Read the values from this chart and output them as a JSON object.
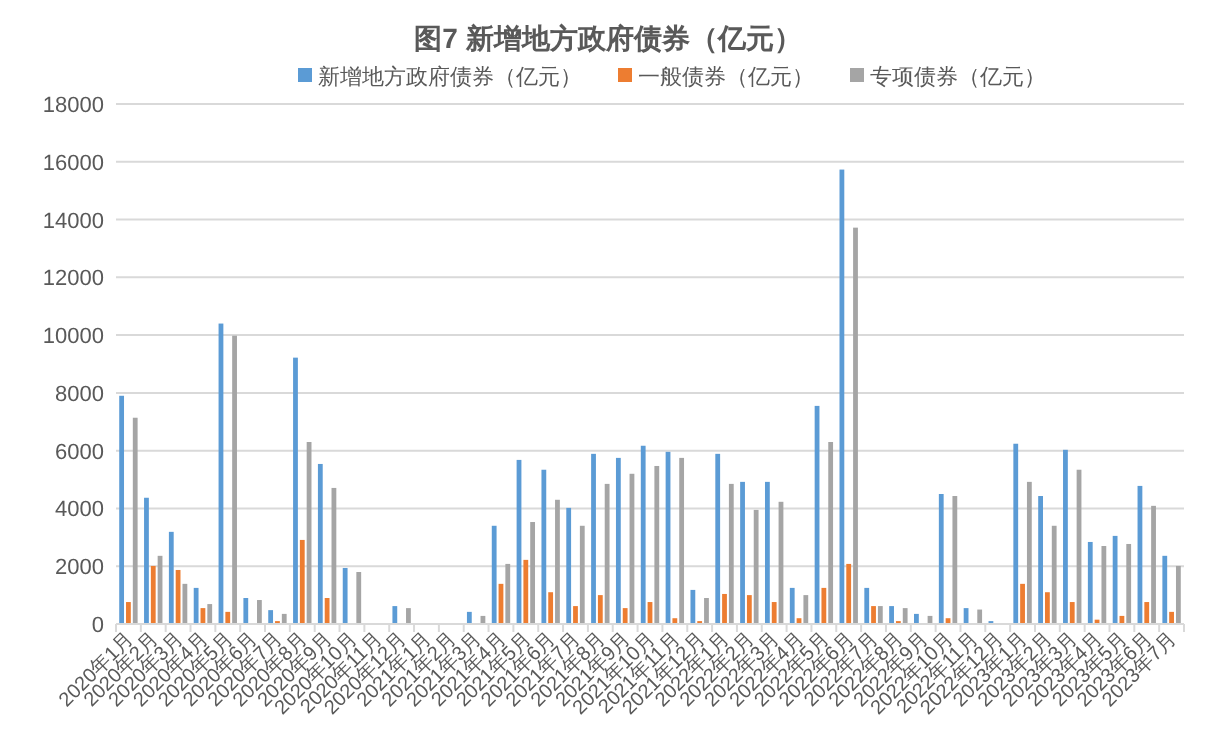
{
  "chart_data": {
    "type": "bar",
    "title": "图7 新增地方政府债券（亿元）",
    "categories": [
      "2020年1月",
      "2020年2月",
      "2020年3月",
      "2020年4月",
      "2020年5月",
      "2020年6月",
      "2020年7月",
      "2020年8月",
      "2020年9月",
      "2020年10月",
      "2020年11月",
      "2020年12月",
      "2021年1月",
      "2021年2月",
      "2021年3月",
      "2021年4月",
      "2021年5月",
      "2021年6月",
      "2021年7月",
      "2021年8月",
      "2021年9月",
      "2021年10月",
      "2021年11月",
      "2021年12月",
      "2022年1月",
      "2022年2月",
      "2022年3月",
      "2022年4月",
      "2022年5月",
      "2022年6月",
      "2022年7月",
      "2022年8月",
      "2022年9月",
      "2022年10月",
      "2022年11月",
      "2022年12月",
      "2023年1月",
      "2023年2月",
      "2023年3月",
      "2023年4月",
      "2023年5月",
      "2023年6月",
      "2023年7月"
    ],
    "series": [
      {
        "name": "新增地方政府债券（亿元）",
        "color": "#5b9bd5",
        "values": [
          7900,
          4370,
          3190,
          1250,
          10400,
          900,
          480,
          9220,
          5540,
          1940,
          0,
          620,
          0,
          0,
          420,
          3400,
          5680,
          5340,
          4020,
          5890,
          5750,
          6170,
          5960,
          1180,
          5890,
          4920,
          4920,
          1250,
          7550,
          15730,
          1250,
          620,
          350,
          4500,
          550,
          100,
          6240,
          4430,
          6030,
          2840,
          3050,
          4780,
          2360
        ]
      },
      {
        "name": "一般债券（亿元）",
        "color": "#ed7d31",
        "values": [
          760,
          2010,
          1870,
          550,
          420,
          30,
          100,
          2910,
          900,
          null,
          0,
          0,
          0,
          0,
          null,
          1390,
          2220,
          1100,
          620,
          1000,
          550,
          760,
          200,
          100,
          1040,
          1000,
          760,
          200,
          1250,
          2080,
          620,
          100,
          null,
          200,
          0,
          0,
          1390,
          1100,
          760,
          150,
          280,
          760,
          420
        ]
      },
      {
        "name": "专项债券（亿元）",
        "color": "#a5a5a5",
        "values": [
          7140,
          2360,
          1390,
          690,
          9980,
          830,
          350,
          6300,
          4710,
          1800,
          0,
          550,
          0,
          0,
          280,
          2080,
          3530,
          4300,
          3400,
          4850,
          5200,
          5470,
          5750,
          900,
          4850,
          3950,
          4230,
          1000,
          6300,
          13720,
          620,
          550,
          280,
          4430,
          500,
          null,
          4920,
          3400,
          5340,
          2700,
          2770,
          4090,
          2010
        ]
      }
    ],
    "ylim": [
      0,
      18000
    ],
    "yticks": [
      0,
      2000,
      4000,
      6000,
      8000,
      10000,
      12000,
      14000,
      16000,
      18000
    ],
    "grid": "y",
    "legend": "top"
  }
}
